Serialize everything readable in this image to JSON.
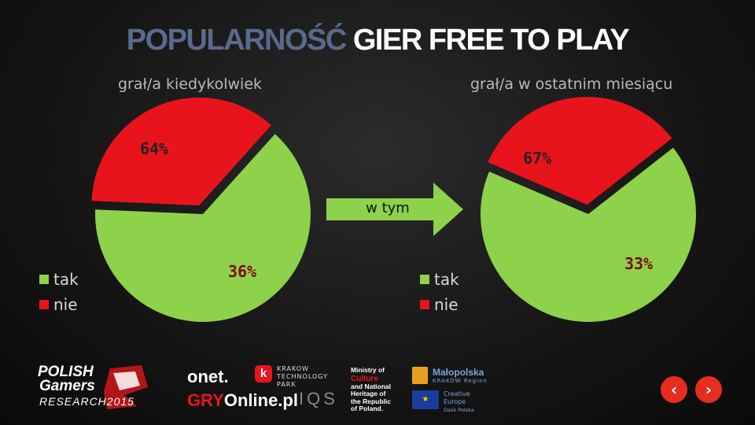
{
  "title": {
    "part1": "POPULARNOŚĆ",
    "part2": "GIER FREE TO PLAY"
  },
  "colors": {
    "tak": "#8ed14b",
    "nie": "#e8141c",
    "title_accent": "#5a6a8c",
    "nav": "#e62d20"
  },
  "chart_data": [
    {
      "type": "pie",
      "title": "grał/a kiedykolwiek",
      "categories": [
        "tak",
        "nie"
      ],
      "values": [
        64,
        36
      ],
      "labels": [
        "64%",
        "36%"
      ],
      "legend": [
        "tak",
        "nie"
      ],
      "legend_placement": "left"
    },
    {
      "type": "pie",
      "title": "grał/a w ostatnim miesiącu",
      "categories": [
        "tak",
        "nie"
      ],
      "values": [
        67,
        33
      ],
      "labels": [
        "67%",
        "33%"
      ],
      "legend": [
        "tak",
        "nie"
      ],
      "legend_placement": "left"
    }
  ],
  "arrow_label": "w tym",
  "footer": {
    "pgr": {
      "line1": "POLISH",
      "line2": "Gamers",
      "line3": "RESEARCH2015"
    },
    "onet": "onet.",
    "gry": {
      "part1": "GRY",
      "part2": "Online.pl"
    },
    "ktp": {
      "line1": "KRAKOW",
      "line2": "TECHNOLOGY",
      "line3": "PARK"
    },
    "iqs": "IQS",
    "ministry": {
      "line1": "Ministry of",
      "line2": "Culture",
      "line3": "and National",
      "line4": "Heritage of",
      "line5": "the Republic",
      "line6": "of Poland."
    },
    "malopolska": {
      "line1": "Małopolska",
      "line2": "KRAKÓW Region"
    },
    "creative": {
      "line1": "Creative",
      "line2": "Europe",
      "line3": "Desk Polska"
    }
  },
  "nav": {
    "prev_icon": "chevron-left-icon",
    "next_icon": "chevron-right-icon",
    "prev": "‹",
    "next": "›"
  }
}
